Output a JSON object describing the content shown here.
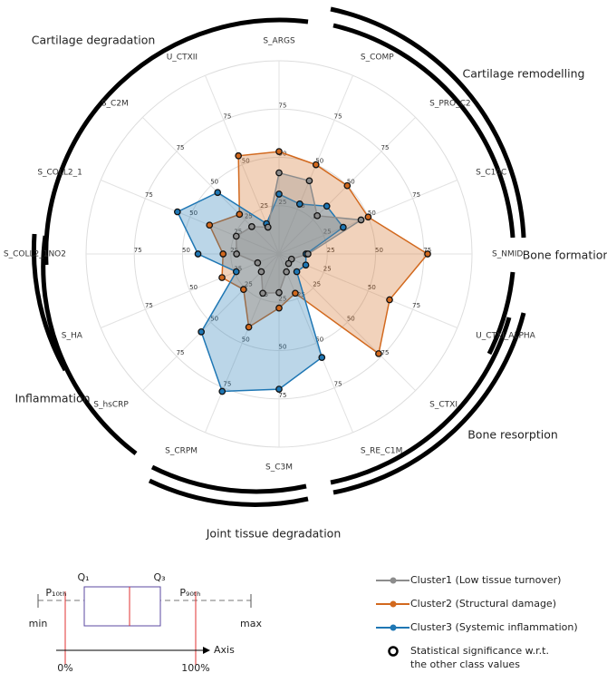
{
  "chart_data": {
    "type": "radar",
    "categories": [
      "S_ARGS",
      "S_COMP",
      "S_PRO_C2",
      "S_C10C",
      "S_NMID",
      "U_CTXI_ALPHA",
      "S_CTXI",
      "S_RE_C1M",
      "S_C3M",
      "S_CRPM",
      "S_hsCRP",
      "S_HA",
      "S_COLL2_1NO2",
      "S_COLL2_1",
      "S_C2M",
      "U_CTXII"
    ],
    "series": [
      {
        "name": "Cluster1 (Low tissue turnover)",
        "color": "#8c8c8c",
        "values": [
          42,
          41,
          28,
          46,
          15,
          7,
          7,
          10,
          20,
          22,
          13,
          12,
          22,
          24,
          20,
          15
        ]
      },
      {
        "name": "Cluster2 (Structural damage)",
        "color": "#d2691e",
        "values": [
          53,
          50,
          50,
          50,
          77,
          62,
          73,
          22,
          28,
          41,
          26,
          32,
          29,
          39,
          29,
          55
        ]
      },
      {
        "name": "Cluster3 (Systemic inflammation)",
        "color": "#1f77b4",
        "values": [
          31,
          28,
          35,
          36,
          14,
          15,
          13,
          58,
          70,
          77,
          57,
          24,
          42,
          57,
          45,
          17
        ]
      }
    ],
    "ylim": [
      0,
      100
    ],
    "yticks": [
      25,
      50,
      75
    ],
    "grid": true,
    "group_labels": [
      "Cartilage degradation",
      "Cartilage remodelling",
      "Bone formation",
      "Bone resorption",
      "Joint tissue degradation",
      "Inflammation"
    ]
  },
  "significance_note": [
    "Statistical significance w.r.t.",
    "the other class values"
  ],
  "box_legend": {
    "q1": "Q₁",
    "q3": "Q₃",
    "p10": "P₁₀ₜₕ",
    "p90": "P₉₀ₜₕ",
    "min": "min",
    "max": "max",
    "axis": "Axis",
    "start": "0%",
    "end": "100%"
  }
}
